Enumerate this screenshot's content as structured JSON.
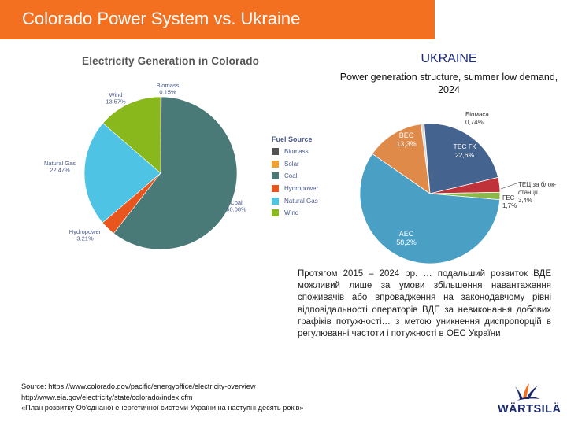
{
  "slide": {
    "title": "Colorado Power System vs. Ukraine"
  },
  "colorado": {
    "title": "Electricity Generation in Colorado",
    "legend_title": "Fuel Source",
    "legend": [
      "Biomass",
      "Solar",
      "Coal",
      "Hydropower",
      "Natural Gas",
      "Wind"
    ]
  },
  "ukraine": {
    "title": "UKRAINE",
    "subtitle": "Power generation structure, summer low demand, 2024",
    "text": "Протягом 2015 – 2024 рр. … подальший розвиток ВДЕ можливий лише за умови збільшення навантаження споживачів або впровадження на законодавчому рівні відповідальності операторів ВДЕ за невиконання добових графіків потужності… з метою уникнення диспропорцій в регулюванні частоти і потужності в ОЕС України"
  },
  "sources": {
    "label": "Source: ",
    "link1": "https://www.colorado.gov/pacific/energyoffice/electricity-overview",
    "link2": "http://www.eia.gov/electricity/state/colorado/index.cfm",
    "line3": "«План розвитку Об'єднаної енергетичної системи України на наступні десять років»"
  },
  "logo": {
    "text": "WÄRTSILÄ"
  },
  "chart_data": [
    {
      "type": "pie",
      "title": "Electricity Generation in Colorado",
      "legend_title": "Fuel Source",
      "legend_position": "right",
      "slices": [
        {
          "name": "Biomass",
          "label": "Biomass",
          "value": 0.15,
          "display": "0.15%",
          "color": "#525252"
        },
        {
          "name": "Solar",
          "label": "Solar",
          "value": 0.0,
          "display": "",
          "color": "#f0a030"
        },
        {
          "name": "Coal",
          "label": "Coal",
          "value": 60.08,
          "display": "60.08%",
          "color": "#4a7a78"
        },
        {
          "name": "Hydropower",
          "label": "Hydropower",
          "value": 3.21,
          "display": "3.21%",
          "color": "#e8561e"
        },
        {
          "name": "Natural Gas",
          "label": "Natural Gas",
          "value": 22.47,
          "display": "22.47%",
          "color": "#4fc3e3"
        },
        {
          "name": "Wind",
          "label": "Wind",
          "value": 13.57,
          "display": "13.57%",
          "color": "#88b81c"
        }
      ]
    },
    {
      "type": "pie",
      "title": "Power generation structure, summer low demand, 2024",
      "slices": [
        {
          "label": "Біомаса",
          "value": 0.74,
          "display": "0,74%",
          "color": "#d9d9d9"
        },
        {
          "label": "ТЕС ГК",
          "value": 22.6,
          "display": "22,6%",
          "color": "#44648f"
        },
        {
          "label": "ТЕЦ за блок-станції",
          "value": 3.4,
          "display": "3,4%",
          "color": "#c0323a"
        },
        {
          "label": "ГЕС",
          "value": 1.7,
          "display": "1,7%",
          "color": "#8cb84a"
        },
        {
          "label": "АЕС",
          "value": 58.2,
          "display": "58,2%",
          "color": "#4a9fc4"
        },
        {
          "label": "ВЕС",
          "value": 13.3,
          "display": "13,3%",
          "color": "#e08a4a"
        }
      ]
    }
  ]
}
